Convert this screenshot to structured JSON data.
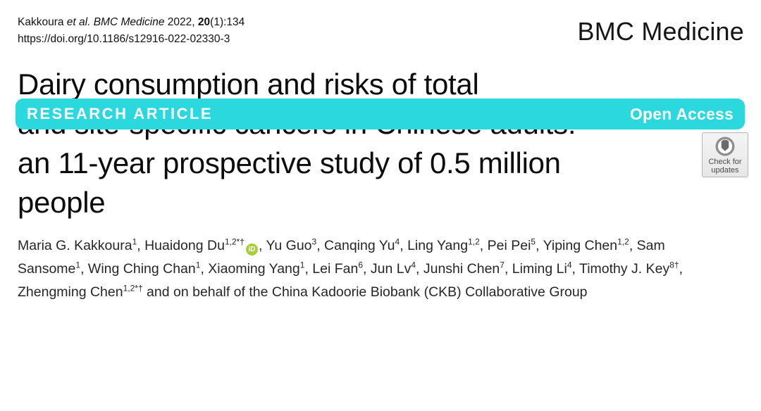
{
  "masthead": {
    "citation_parts": [
      {
        "text": "Kakkoura ",
        "style": "plain"
      },
      {
        "text": "et al. BMC Medicine",
        "style": "italic"
      },
      {
        "text": "  2022, ",
        "style": "plain"
      },
      {
        "text": "20",
        "style": "bold"
      },
      {
        "text": "(1):134",
        "style": "plain"
      }
    ],
    "doi": "https://doi.org/10.1186/s12916-022-02330-3",
    "journal": "BMC Medicine"
  },
  "banner": {
    "kicker": "RESEARCH ARTICLE",
    "access": "Open Access",
    "color": "#2bd8dd"
  },
  "crossmark": {
    "line1": "Check for",
    "line2": "updates"
  },
  "title": {
    "lines": [
      "Dairy consumption and risks of total",
      "and site-specific cancers in Chinese adults:",
      "an 11-year prospective study of 0.5 million",
      "people"
    ]
  },
  "authors": {
    "orcid_label": "iD",
    "orcid_color": "#a6ce39",
    "segments": [
      {
        "text": "Maria G. Kakkoura",
        "sup": "1",
        "after": ", "
      },
      {
        "text": "Huaidong Du",
        "sup": "1,2*†",
        "orcid": true,
        "after": ", "
      },
      {
        "text": "Yu Guo",
        "sup": "3",
        "after": ", "
      },
      {
        "text": "Canqing Yu",
        "sup": "4",
        "after": ", "
      },
      {
        "text": "Ling Yang",
        "sup": "1,2",
        "after": ", "
      },
      {
        "text": "Pei Pei",
        "sup": "5",
        "after": ", "
      },
      {
        "text": "Yiping Chen",
        "sup": "1,2",
        "after": ", "
      },
      {
        "text": "Sam Sansome",
        "sup": "1",
        "after": ", "
      },
      {
        "text": "Wing Ching Chan",
        "sup": "1",
        "after": ", "
      },
      {
        "text": "Xiaoming Yang",
        "sup": "1",
        "after": ", "
      },
      {
        "text": "Lei Fan",
        "sup": "6",
        "after": ", "
      },
      {
        "text": "Jun Lv",
        "sup": "4",
        "after": ", "
      },
      {
        "text": "Junshi Chen",
        "sup": "7",
        "after": ", "
      },
      {
        "text": "Liming Li",
        "sup": "4",
        "after": ", "
      },
      {
        "text": "Timothy J. Key",
        "sup": "8†",
        "after": ", "
      },
      {
        "text": "Zhengming Chen",
        "sup": "1,2*†",
        "after": ""
      }
    ],
    "tail": " and on behalf of the China Kadoorie Biobank (CKB) Collaborative Group"
  }
}
